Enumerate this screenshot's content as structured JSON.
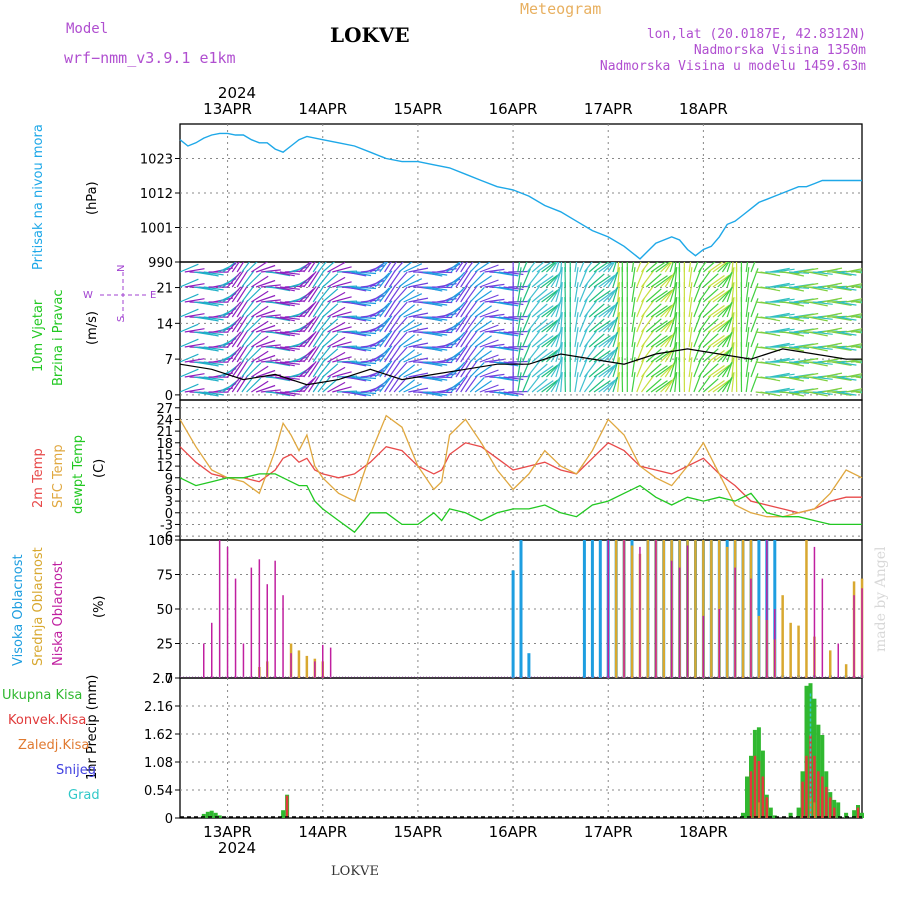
{
  "header": {
    "model_label": "Model",
    "model_name": "wrf−nmm_v3.9.1  e1km",
    "title": "LOKVE",
    "product": "Meteogram",
    "lonlat": "lon,lat (20.0187E, 42.8312N)",
    "elevation": "Nadmorska Visina 1350m",
    "model_elevation": "Nadmorska Visina u modelu 1459.63m",
    "year": "2024",
    "footer_station": "LOKVE",
    "credit": "made by Angel"
  },
  "colors": {
    "pressure": "#1ea8e8",
    "t2m": "#e84a4a",
    "tsfc": "#e0a840",
    "dewpt": "#22c822",
    "cloud_high": "#1e9ee0",
    "cloud_mid": "#d8a830",
    "cloud_low": "#c020a0",
    "precip_total": "#30b830",
    "precip_conv": "#e03a3a",
    "precip_frozen": "#e07a30",
    "snow": "#4040e0",
    "graupel": "#30c8c8",
    "axis_purple": "#a040d0"
  },
  "chart_data": [
    {
      "type": "line",
      "panel": "pressure",
      "ylabel": [
        "Pritisak na nivou mora",
        "(hPa)"
      ],
      "yticks": [
        990,
        1001,
        1012,
        1023
      ],
      "ylim": [
        990,
        1034
      ],
      "x_unit": "hours from 2024-04-12 12UTC",
      "date_ticks": [
        "13APR",
        "14APR",
        "15APR",
        "16APR",
        "17APR",
        "18APR"
      ],
      "series": [
        {
          "x": [
            0,
            2,
            4,
            6,
            8,
            10,
            12,
            14,
            16,
            18,
            20,
            22,
            24,
            26,
            28,
            30,
            32,
            36,
            40,
            44,
            48,
            52,
            56,
            60,
            64,
            68,
            72,
            76,
            80,
            84,
            88,
            92,
            96,
            100,
            104,
            108,
            112,
            116,
            120,
            124,
            126,
            128,
            130,
            132,
            134,
            136,
            138,
            140,
            142,
            144,
            146,
            148,
            150,
            152,
            154,
            156,
            158,
            160,
            162,
            164,
            166,
            168,
            170,
            172
          ],
          "values": [
            1029,
            1027,
            1028,
            1029.5,
            1030.5,
            1031,
            1031,
            1030.5,
            1030.5,
            1029,
            1028,
            1028,
            1026,
            1025,
            1027,
            1029,
            1030,
            1029,
            1028,
            1027,
            1025,
            1023,
            1022,
            1022,
            1021,
            1020,
            1018,
            1016,
            1014,
            1013,
            1011,
            1008,
            1006,
            1003,
            1000,
            998,
            995,
            991,
            996,
            998,
            997,
            994,
            992,
            994,
            995,
            998,
            1002,
            1003,
            1005,
            1007,
            1009,
            1010,
            1011,
            1012,
            1013,
            1014,
            1014,
            1015,
            1016,
            1016,
            1016,
            1016,
            1016,
            1016
          ]
        }
      ]
    },
    {
      "type": "line",
      "panel": "wind",
      "ylabel": [
        "10m Vjetar",
        "Brzina i Pravac",
        "(m/s)"
      ],
      "compass": [
        "N",
        "W",
        "E",
        "S"
      ],
      "yticks": [
        0,
        7,
        14,
        21
      ],
      "ylim": [
        -1,
        26
      ],
      "series": [
        {
          "name": "speed",
          "x": [
            0,
            8,
            16,
            24,
            32,
            40,
            48,
            56,
            64,
            72,
            80,
            88,
            96,
            104,
            112,
            120,
            128,
            136,
            144,
            152,
            160,
            168,
            172
          ],
          "values": [
            6,
            5,
            3,
            4,
            2,
            3,
            5,
            3,
            4,
            5,
            6,
            6,
            8,
            7,
            6,
            8,
            9,
            8,
            7,
            9,
            8,
            7,
            7
          ]
        }
      ]
    },
    {
      "type": "line",
      "panel": "temperature",
      "ylabel": [
        "2m Temp",
        "SFC Temp",
        "dewpt Temp",
        "(C)"
      ],
      "yticks": [
        -6,
        -3,
        0,
        3,
        6,
        9,
        12,
        15,
        18,
        21,
        24,
        27
      ],
      "ylim": [
        -7,
        29
      ],
      "x": [
        0,
        4,
        8,
        12,
        16,
        20,
        24,
        26,
        28,
        30,
        32,
        34,
        36,
        40,
        44,
        48,
        52,
        56,
        60,
        64,
        66,
        68,
        72,
        76,
        80,
        84,
        88,
        92,
        96,
        100,
        104,
        108,
        112,
        116,
        120,
        124,
        128,
        132,
        136,
        140,
        144,
        148,
        152,
        156,
        160,
        164,
        168,
        172
      ],
      "series": [
        {
          "name": "2m Temp",
          "values": [
            17,
            13,
            10,
            9,
            9,
            8,
            11,
            14,
            15,
            13,
            14,
            11,
            10,
            9,
            10,
            13,
            17,
            16,
            12,
            10,
            11,
            15,
            18,
            17,
            14,
            11,
            12,
            13,
            11,
            10,
            14,
            18,
            16,
            12,
            11,
            10,
            12,
            14,
            10,
            7,
            3,
            2,
            1,
            0,
            1,
            3,
            4,
            4
          ]
        },
        {
          "name": "SFC Temp",
          "values": [
            24,
            17,
            11,
            9,
            8,
            5,
            16,
            23,
            20,
            16,
            20,
            12,
            9,
            5,
            3,
            15,
            25,
            22,
            12,
            6,
            8,
            20,
            24,
            18,
            11,
            6,
            10,
            16,
            12,
            10,
            16,
            24,
            20,
            12,
            9,
            7,
            12,
            18,
            10,
            2,
            0,
            -1,
            -1,
            0,
            1,
            5,
            11,
            9
          ]
        },
        {
          "name": "dewpt Temp",
          "values": [
            9,
            7,
            8,
            9,
            9,
            10,
            10,
            9,
            8,
            7,
            7,
            3,
            1,
            -2,
            -5,
            0,
            0,
            -3,
            -3,
            0,
            -2,
            1,
            0,
            -2,
            0,
            1,
            1,
            2,
            0,
            -1,
            2,
            3,
            5,
            7,
            4,
            2,
            4,
            3,
            4,
            3,
            5,
            0,
            -1,
            -1,
            -2,
            -3,
            -3,
            -3
          ]
        }
      ]
    },
    {
      "type": "bar",
      "panel": "cloud",
      "ylabel": [
        "Visoka Oblacnost",
        "Srednja Oblacnost",
        "Niska Oblacnost",
        "(%)"
      ],
      "yticks": [
        0,
        25,
        50,
        75,
        100
      ],
      "ylim": [
        0,
        100
      ],
      "series": [
        {
          "name": "Niska Oblacnost",
          "x": [
            6,
            8,
            10,
            12,
            14,
            16,
            18,
            20,
            22,
            24,
            26,
            28,
            30,
            34,
            36,
            38,
            108,
            112,
            116,
            120,
            124,
            126,
            128,
            132,
            136,
            140,
            144,
            148,
            150,
            160,
            162,
            166,
            170,
            172
          ],
          "values": [
            25,
            40,
            100,
            95,
            72,
            25,
            80,
            86,
            68,
            85,
            60,
            18,
            0,
            12,
            24,
            22,
            100,
            100,
            95,
            100,
            85,
            80,
            96,
            45,
            50,
            80,
            72,
            100,
            50,
            95,
            72,
            25,
            60,
            65
          ]
        },
        {
          "name": "Srednja Oblacnost",
          "x": [
            20,
            22,
            28,
            30,
            32,
            34,
            36,
            110,
            112,
            114,
            116,
            118,
            120,
            122,
            124,
            126,
            128,
            130,
            132,
            134,
            136,
            138,
            140,
            142,
            144,
            146,
            148,
            150,
            152,
            154,
            156,
            158,
            160,
            164,
            168,
            170,
            172
          ],
          "values": [
            8,
            12,
            25,
            20,
            16,
            14,
            12,
            100,
            100,
            96,
            90,
            100,
            100,
            100,
            100,
            100,
            100,
            100,
            100,
            100,
            100,
            95,
            100,
            100,
            100,
            45,
            42,
            28,
            60,
            40,
            38,
            100,
            30,
            20,
            10,
            70,
            72
          ]
        },
        {
          "name": "Visoka Oblacnost",
          "x": [
            84,
            86,
            88,
            102,
            104,
            106,
            108,
            110,
            112,
            114,
            118,
            120,
            122,
            124,
            126,
            128,
            130,
            132,
            134,
            136,
            138,
            140,
            142,
            144,
            146,
            148,
            150,
            152,
            156,
            160,
            164,
            168,
            172
          ],
          "values": [
            78,
            100,
            18,
            100,
            100,
            100,
            100,
            100,
            100,
            100,
            100,
            100,
            100,
            100,
            100,
            100,
            100,
            100,
            100,
            100,
            100,
            100,
            100,
            100,
            100,
            100,
            100,
            2,
            2,
            2,
            2,
            2,
            2
          ]
        }
      ]
    },
    {
      "type": "bar",
      "panel": "precip",
      "ylabel": [
        "1hr Precip (mm)"
      ],
      "legend": [
        "Ukupna Kisa",
        "Konvek.Kisa",
        "Zaledj.Kisa",
        "Snijeg",
        "Grad"
      ],
      "yticks": [
        0,
        0.54,
        1.08,
        1.62,
        2.16,
        2.7
      ],
      "ylim": [
        0,
        2.7
      ],
      "series": [
        {
          "name": "Ukupna Kisa",
          "x": [
            6,
            7,
            8,
            9,
            10,
            26,
            27,
            142,
            143,
            144,
            145,
            146,
            147,
            148,
            149,
            150,
            154,
            156,
            157,
            158,
            159,
            160,
            161,
            162,
            163,
            164,
            165,
            166,
            168,
            170,
            171,
            172
          ],
          "values": [
            0.08,
            0.12,
            0.14,
            0.1,
            0.05,
            0.15,
            0.45,
            0.1,
            0.8,
            1.2,
            1.7,
            1.75,
            1.3,
            0.45,
            0.2,
            0.05,
            0.1,
            0.2,
            0.9,
            2.55,
            2.6,
            2.3,
            1.8,
            1.6,
            0.9,
            0.5,
            0.35,
            0.3,
            0.1,
            0.15,
            0.25,
            0.1
          ]
        },
        {
          "name": "Konvek.Kisa",
          "x": [
            27,
            144,
            145,
            146,
            147,
            148,
            157,
            158,
            159,
            160,
            161,
            162,
            163,
            164,
            165,
            171
          ],
          "values": [
            0.43,
            0.9,
            1.2,
            1.1,
            0.8,
            0.4,
            0.7,
            1.2,
            1.6,
            1.2,
            0.9,
            0.8,
            0.6,
            0.4,
            0.2,
            0.2
          ]
        },
        {
          "name": "Zaledj.Kisa",
          "x": [
            146,
            159,
            160
          ],
          "values": [
            0.3,
            0.4,
            0.3
          ]
        },
        {
          "name": "Grad",
          "x": [
            159
          ],
          "values": [
            2.4
          ]
        }
      ]
    }
  ]
}
